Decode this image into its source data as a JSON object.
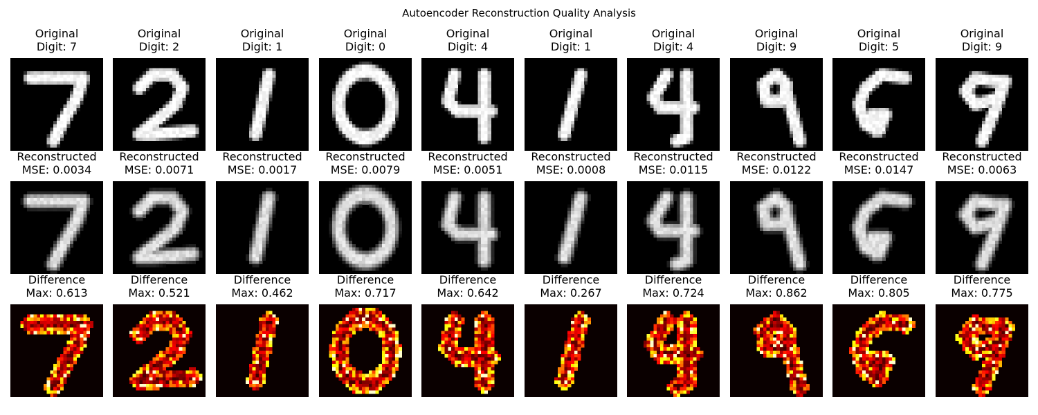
{
  "chart_data": {
    "type": "heatmap",
    "title": "Autoencoder Reconstruction Quality Analysis",
    "row_titles": {
      "original": "Original",
      "reconstructed": "Reconstructed",
      "difference": "Difference"
    },
    "subtitle_prefixes": {
      "digit": "Digit: ",
      "mse": "MSE: ",
      "max": "Max: "
    },
    "colormaps": {
      "original": "gray",
      "reconstructed": "gray",
      "difference": "hot"
    },
    "samples": [
      {
        "digit": "7",
        "mse": "0.0034",
        "max_diff": "0.613"
      },
      {
        "digit": "2",
        "mse": "0.0071",
        "max_diff": "0.521"
      },
      {
        "digit": "1",
        "mse": "0.0017",
        "max_diff": "0.462"
      },
      {
        "digit": "0",
        "mse": "0.0079",
        "max_diff": "0.717"
      },
      {
        "digit": "4",
        "mse": "0.0051",
        "max_diff": "0.642"
      },
      {
        "digit": "1",
        "mse": "0.0008",
        "max_diff": "0.267"
      },
      {
        "digit": "4",
        "mse": "0.0115",
        "max_diff": "0.724"
      },
      {
        "digit": "9",
        "mse": "0.0122",
        "max_diff": "0.862"
      },
      {
        "digit": "5",
        "mse": "0.0147",
        "max_diff": "0.805"
      },
      {
        "digit": "9",
        "mse": "0.0063",
        "max_diff": "0.775"
      }
    ]
  }
}
